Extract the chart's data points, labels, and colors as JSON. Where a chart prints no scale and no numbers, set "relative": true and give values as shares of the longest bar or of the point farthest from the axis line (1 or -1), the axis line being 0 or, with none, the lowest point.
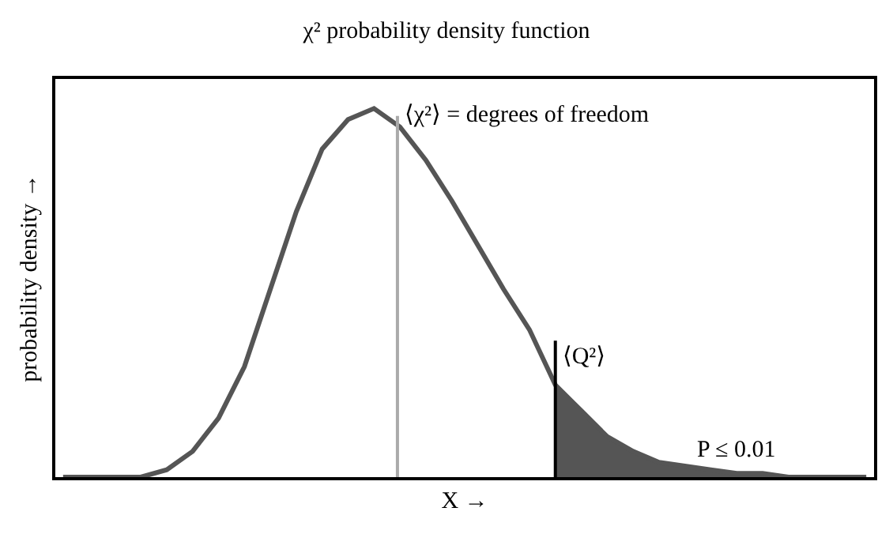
{
  "chart_data": {
    "type": "line",
    "title": "χ² probability density function",
    "xlabel": "X →",
    "ylabel": "probability density →",
    "relative": true,
    "marker": "none",
    "categories": [
      null,
      null,
      null,
      null,
      null,
      null,
      null,
      null,
      null,
      null,
      null,
      null,
      null,
      null,
      null,
      null,
      null,
      null,
      null,
      null,
      null,
      null,
      null,
      null,
      null,
      null,
      null,
      null,
      null,
      null,
      null,
      null
    ],
    "series": [
      {
        "color": "#555555",
        "values": [
          0,
          0,
          0,
          0,
          0.02,
          0.07,
          0.16,
          0.3,
          0.51,
          0.72,
          0.89,
          0.97,
          1,
          0.95,
          0.86,
          0.75,
          0.63,
          0.51,
          0.4,
          0.25,
          0.18,
          0.11,
          0.07,
          0.04,
          0.03,
          0.02,
          0.01,
          0.01,
          0,
          0,
          0,
          0
        ]
      },
      {
        "type": "area",
        "color": "#555555",
        "values": [
          null,
          null,
          null,
          null,
          null,
          null,
          null,
          null,
          null,
          null,
          null,
          null,
          null,
          null,
          null,
          null,
          null,
          null,
          null,
          0.25,
          0.18,
          0.11,
          0.07,
          0.04,
          0.03,
          0.02,
          0.01,
          0.01,
          0,
          0,
          0,
          0
        ]
      }
    ],
    "annotations": [
      "⟨χ²⟩ = degrees of freedom",
      "⟨Q²⟩",
      "P ≤ 0.01"
    ]
  }
}
